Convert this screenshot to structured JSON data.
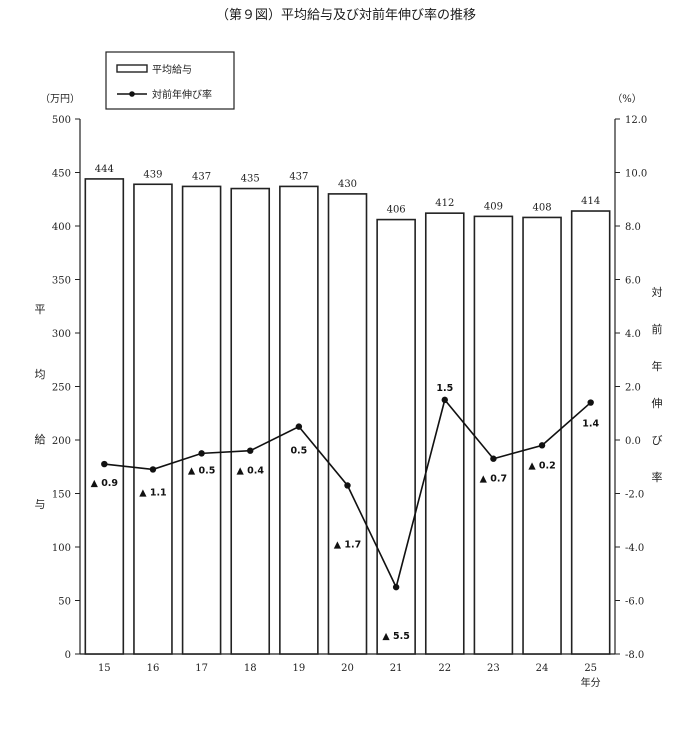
{
  "chart_data": {
    "type": "bar",
    "title": "（第９図）平均給与及び対前年伸び率の推移",
    "categories": [
      "15",
      "16",
      "17",
      "18",
      "19",
      "20",
      "21",
      "22",
      "23",
      "24",
      "25"
    ],
    "x_unit": "年分",
    "left_axis": {
      "unit": "（万円）",
      "label": [
        "平",
        "均",
        "給",
        "与"
      ],
      "range": [
        0,
        500
      ],
      "ticks": [
        "0",
        "50",
        "100",
        "150",
        "200",
        "250",
        "300",
        "350",
        "400",
        "450",
        "500"
      ]
    },
    "right_axis": {
      "unit": "（%）",
      "label": [
        "対",
        "前",
        "年",
        "伸",
        "び",
        "率"
      ],
      "range": [
        -8.0,
        12.0
      ],
      "ticks": [
        "-8.0",
        "-6.0",
        "-4.0",
        "-2.0",
        "0.0",
        "2.0",
        "4.0",
        "6.0",
        "8.0",
        "10.0",
        "12.0"
      ]
    },
    "legend": {
      "position": "top-left",
      "items": [
        "平均給与",
        "対前年伸び率"
      ]
    },
    "series": [
      {
        "name": "平均給与",
        "type": "bar",
        "axis": "left",
        "values": [
          444,
          439,
          437,
          435,
          437,
          430,
          406,
          412,
          409,
          408,
          414
        ],
        "labels": [
          "444",
          "439",
          "437",
          "435",
          "437",
          "430",
          "406",
          "412",
          "409",
          "408",
          "414"
        ]
      },
      {
        "name": "対前年伸び率",
        "type": "line",
        "axis": "right",
        "values": [
          -0.9,
          -1.1,
          -0.5,
          -0.4,
          0.5,
          -1.7,
          -5.5,
          1.5,
          -0.7,
          -0.2,
          1.4
        ],
        "labels": [
          "▲ 0.9",
          "▲ 1.1",
          "▲ 0.5",
          "▲ 0.4",
          "0.5",
          "▲ 1.7",
          "▲ 5.5",
          "1.5",
          "▲ 0.7",
          "▲ 0.2",
          "1.4"
        ]
      }
    ]
  }
}
